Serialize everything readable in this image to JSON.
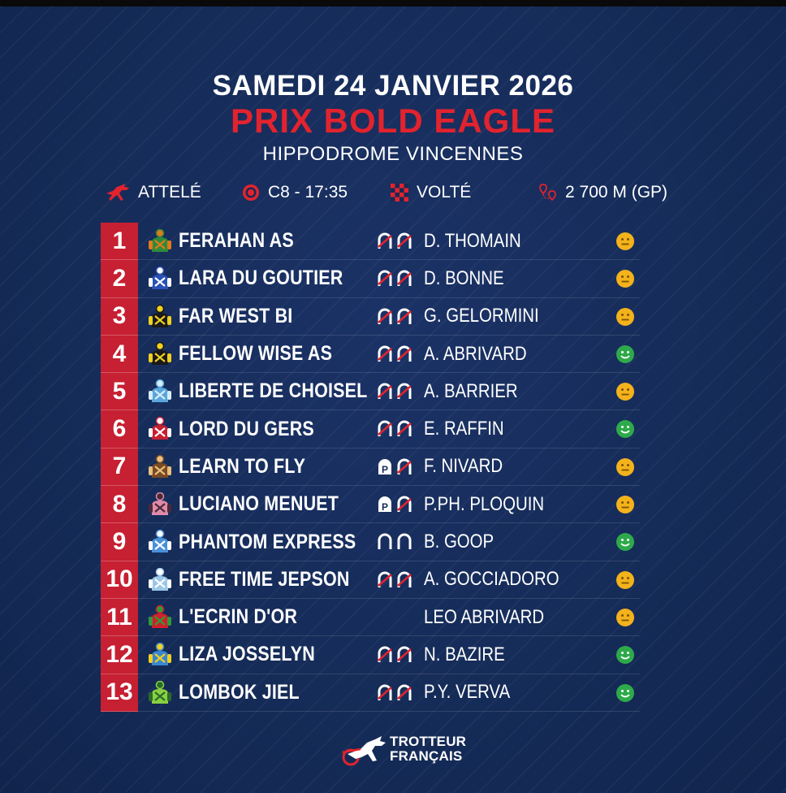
{
  "header": {
    "date": "SAMEDI 24 JANVIER 2026",
    "race_name": "PRIX BOLD EAGLE",
    "venue": "HIPPODROME VINCENNES"
  },
  "info": {
    "discipline": "ATTELÉ",
    "race_code": "C8 - 17:35",
    "start_type": "VOLTÉ",
    "distance": "2 700 M (GP)"
  },
  "colors": {
    "accent_red": "#e2232e",
    "number_bg": "#c62032",
    "background": "#162a55",
    "mood_neutral": "#f4b21b",
    "mood_happy": "#2eaa4a"
  },
  "runners": [
    {
      "number": "1",
      "horse": "FERAHAN AS",
      "driver": "D. THOMAIN",
      "shoes": "DA",
      "mood": "neutral",
      "silks": "green-orange-icon"
    },
    {
      "number": "2",
      "horse": "LARA DU GOUTIER",
      "driver": "D. BONNE",
      "shoes": "DA",
      "mood": "neutral",
      "silks": "blue-star-icon"
    },
    {
      "number": "3",
      "horse": "FAR WEST BI",
      "driver": "G. GELORMINI",
      "shoes": "DA",
      "mood": "neutral",
      "silks": "black-yellow-dots-icon"
    },
    {
      "number": "4",
      "horse": "FELLOW WISE AS",
      "driver": "A. ABRIVARD",
      "shoes": "DA",
      "mood": "happy",
      "silks": "black-yellow-band-icon"
    },
    {
      "number": "5",
      "horse": "LIBERTE DE CHOISEL",
      "driver": "A. BARRIER",
      "shoes": "DA",
      "mood": "neutral",
      "silks": "light-blue-icon"
    },
    {
      "number": "6",
      "horse": "LORD DU GERS",
      "driver": "E. RAFFIN",
      "shoes": "DA",
      "mood": "happy",
      "silks": "red-white-icon"
    },
    {
      "number": "7",
      "horse": "LEARN TO FLY",
      "driver": "F. NIVARD",
      "shoes": "PA",
      "mood": "neutral",
      "silks": "brown-chevron-icon"
    },
    {
      "number": "8",
      "horse": "LUCIANO MENUET",
      "driver": "P.PH. PLOQUIN",
      "shoes": "PA",
      "mood": "neutral",
      "silks": "pink-check-icon"
    },
    {
      "number": "9",
      "horse": "PHANTOM EXPRESS",
      "driver": "B. GOOP",
      "shoes": "shod",
      "mood": "happy",
      "silks": "blue-sash-icon"
    },
    {
      "number": "10",
      "horse": "FREE TIME JEPSON",
      "driver": "A. GOCCIADORO",
      "shoes": "DA",
      "mood": "neutral",
      "silks": "light-blue-check-icon"
    },
    {
      "number": "11",
      "horse": "L'ECRIN D'OR",
      "driver": "LEO ABRIVARD",
      "shoes": "none",
      "mood": "neutral",
      "silks": "red-green-icon"
    },
    {
      "number": "12",
      "horse": "LIZA JOSSELYN",
      "driver": "N. BAZIRE",
      "shoes": "DA",
      "mood": "happy",
      "silks": "blue-yellow-icon"
    },
    {
      "number": "13",
      "horse": "LOMBOK JIEL",
      "driver": "P.Y. VERVA",
      "shoes": "DA",
      "mood": "happy",
      "silks": "green-stripes-icon"
    }
  ],
  "footer": {
    "logo_line1": "TROTTEUR",
    "logo_line2": "FRANÇAIS"
  }
}
